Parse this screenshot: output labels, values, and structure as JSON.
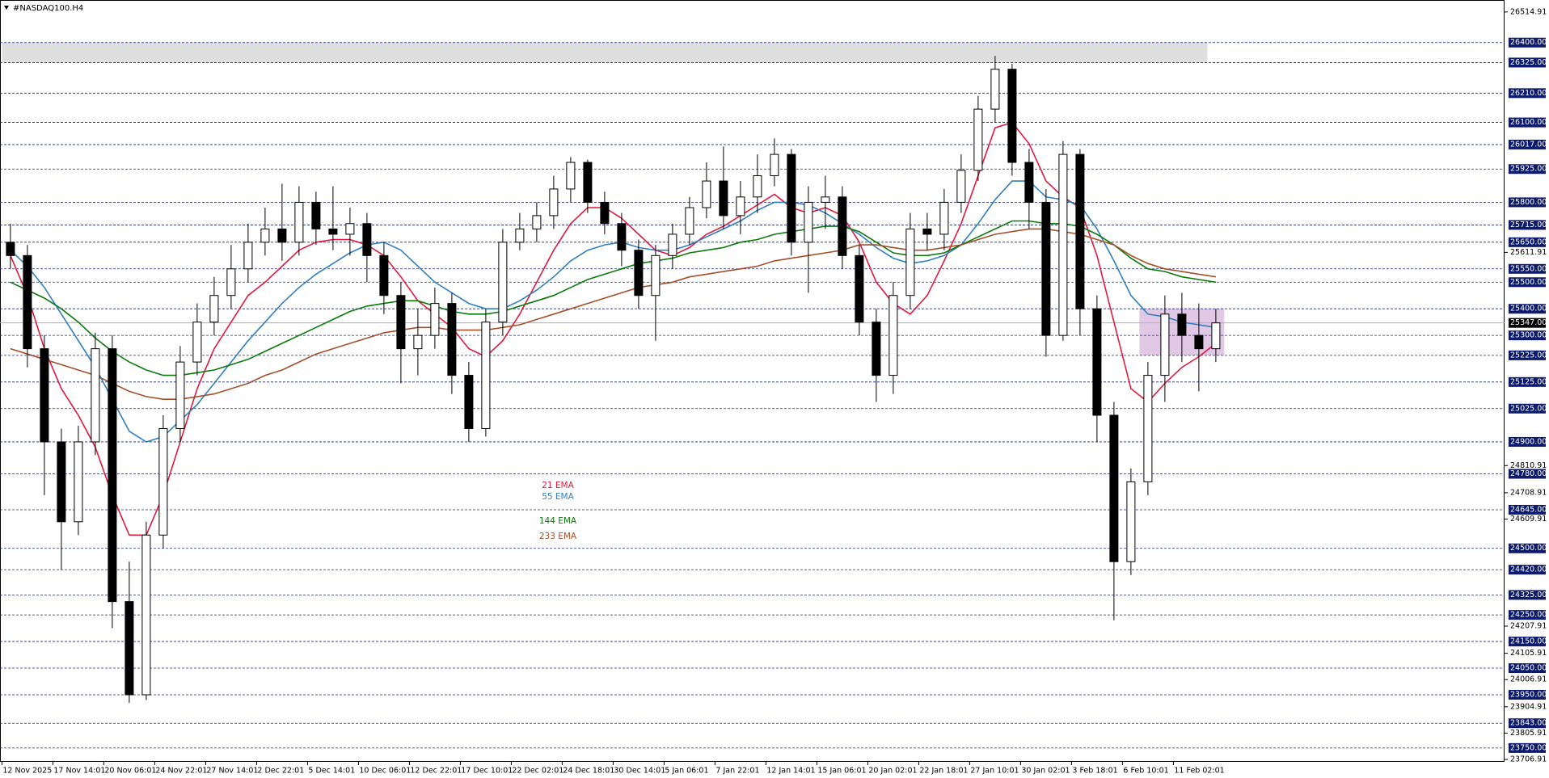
{
  "chart_data": {
    "type": "candlestick",
    "title": "#NASDAQ100.H4",
    "categories": [
      "12 Nov 2025",
      null,
      null,
      "17 Nov 14:01",
      null,
      null,
      "20 Nov 06:01",
      null,
      null,
      "24 Nov 22:01",
      null,
      null,
      "27 Nov 14:01",
      null,
      null,
      "2 Dec 22:01",
      null,
      null,
      "5 Dec 14:01",
      null,
      null,
      "10 Dec 06:01",
      null,
      null,
      "12 Dec 22:01",
      null,
      null,
      "17 Dec 10:01",
      null,
      null,
      "22 Dec 02:01",
      null,
      null,
      "24 Dec 18:01",
      null,
      null,
      "30 Dec 14:01",
      null,
      null,
      "5 Jan 06:01",
      null,
      null,
      "7 Jan 22:01",
      null,
      null,
      "12 Jan 14:01",
      null,
      null,
      "15 Jan 06:01",
      null,
      null,
      "20 Jan 02:01",
      null,
      null,
      "22 Jan 18:01",
      null,
      null,
      "27 Jan 10:01",
      null,
      null,
      "30 Jan 02:01",
      null,
      null,
      "3 Feb 18:01",
      null,
      null,
      "6 Feb 10:01",
      null,
      null,
      "11 Feb 02:01",
      null,
      null
    ],
    "ohlc": [
      [
        25650,
        25720,
        25550,
        25600
      ],
      [
        25600,
        25640,
        25180,
        25250
      ],
      [
        25250,
        25300,
        24700,
        24900
      ],
      [
        24900,
        24950,
        24420,
        24600
      ],
      [
        24600,
        24960,
        24550,
        24900
      ],
      [
        24900,
        25310,
        24850,
        25250
      ],
      [
        25250,
        25300,
        24200,
        24300
      ],
      [
        24300,
        24450,
        23920,
        23950
      ],
      [
        23950,
        24600,
        23930,
        24550
      ],
      [
        24550,
        25000,
        24500,
        24950
      ],
      [
        24950,
        25260,
        24900,
        25200
      ],
      [
        25200,
        25420,
        25150,
        25350
      ],
      [
        25350,
        25520,
        25300,
        25450
      ],
      [
        25450,
        25640,
        25400,
        25550
      ],
      [
        25550,
        25720,
        25500,
        25650
      ],
      [
        25650,
        25780,
        25600,
        25700
      ],
      [
        25700,
        25870,
        25580,
        25650
      ],
      [
        25650,
        25860,
        25600,
        25800
      ],
      [
        25800,
        25840,
        25640,
        25700
      ],
      [
        25700,
        25860,
        25620,
        25680
      ],
      [
        25680,
        25780,
        25600,
        25720
      ],
      [
        25720,
        25760,
        25500,
        25600
      ],
      [
        25600,
        25650,
        25380,
        25450
      ],
      [
        25450,
        25500,
        25120,
        25250
      ],
      [
        25250,
        25400,
        25150,
        25300
      ],
      [
        25300,
        25480,
        25250,
        25420
      ],
      [
        25420,
        25460,
        25080,
        25150
      ],
      [
        25150,
        25200,
        24900,
        24950
      ],
      [
        24950,
        25400,
        24920,
        25350
      ],
      [
        25350,
        25700,
        25300,
        25650
      ],
      [
        25650,
        25760,
        25620,
        25700
      ],
      [
        25700,
        25800,
        25650,
        25750
      ],
      [
        25750,
        25900,
        25700,
        25850
      ],
      [
        25850,
        25970,
        25800,
        25950
      ],
      [
        25950,
        25960,
        25760,
        25800
      ],
      [
        25800,
        25840,
        25680,
        25720
      ],
      [
        25720,
        25760,
        25560,
        25620
      ],
      [
        25620,
        25660,
        25400,
        25450
      ],
      [
        25450,
        25640,
        25280,
        25600
      ],
      [
        25600,
        25720,
        25550,
        25680
      ],
      [
        25680,
        25820,
        25640,
        25780
      ],
      [
        25780,
        25950,
        25740,
        25880
      ],
      [
        25880,
        26010,
        25700,
        25750
      ],
      [
        25750,
        25880,
        25680,
        25820
      ],
      [
        25820,
        25980,
        25760,
        25900
      ],
      [
        25900,
        26040,
        25860,
        25980
      ],
      [
        25980,
        26000,
        25600,
        25650
      ],
      [
        25650,
        25860,
        25460,
        25800
      ],
      [
        25800,
        25900,
        25700,
        25820
      ],
      [
        25820,
        25860,
        25550,
        25600
      ],
      [
        25600,
        25640,
        25300,
        25350
      ],
      [
        25350,
        25400,
        25050,
        25150
      ],
      [
        25150,
        25500,
        25080,
        25450
      ],
      [
        25450,
        25760,
        25400,
        25700
      ],
      [
        25700,
        25760,
        25620,
        25680
      ],
      [
        25680,
        25850,
        25620,
        25800
      ],
      [
        25800,
        25980,
        25760,
        25920
      ],
      [
        25920,
        26200,
        25880,
        26150
      ],
      [
        26150,
        26350,
        26100,
        26300
      ],
      [
        26300,
        26320,
        25900,
        25950
      ],
      [
        25950,
        26000,
        25700,
        25800
      ],
      [
        25800,
        25850,
        25220,
        25300
      ],
      [
        25300,
        26030,
        25280,
        25980
      ],
      [
        25980,
        26000,
        25300,
        25400
      ],
      [
        25400,
        25450,
        24900,
        25000
      ],
      [
        25000,
        25050,
        24230,
        24450
      ],
      [
        24450,
        24800,
        24400,
        24750
      ],
      [
        24750,
        25200,
        24700,
        25150
      ],
      [
        25150,
        25450,
        25050,
        25380
      ],
      [
        25380,
        25460,
        25200,
        25300
      ],
      [
        25300,
        25420,
        25090,
        25250
      ],
      [
        25250,
        25400,
        25200,
        25347
      ]
    ],
    "up_color": "#ffffff",
    "down_color": "#000000",
    "series": [
      {
        "name": "21 EMA",
        "color": "#e0193f",
        "values": [
          25600,
          25450,
          25250,
          25100,
          25000,
          24880,
          24700,
          24550,
          24550,
          24700,
          24900,
          25100,
          25250,
          25350,
          25450,
          25500,
          25560,
          25620,
          25650,
          25660,
          25660,
          25640,
          25600,
          25520,
          25430,
          25380,
          25330,
          25250,
          25220,
          25280,
          25380,
          25500,
          25620,
          25720,
          25780,
          25780,
          25740,
          25680,
          25620,
          25600,
          25630,
          25680,
          25710,
          25750,
          25790,
          25830,
          25780,
          25760,
          25780,
          25750,
          25650,
          25500,
          25420,
          25380,
          25450,
          25580,
          25720,
          25900,
          26080,
          26100,
          26020,
          25880,
          25820,
          25780,
          25600,
          25350,
          25100,
          25050,
          25120,
          25180,
          25220,
          25270
        ]
      },
      {
        "name": "55 EMA",
        "color": "#2f7fc1",
        "values": [
          25620,
          25560,
          25480,
          25380,
          25280,
          25180,
          25060,
          24940,
          24900,
          24920,
          24980,
          25040,
          25120,
          25200,
          25280,
          25350,
          25420,
          25480,
          25530,
          25570,
          25610,
          25640,
          25650,
          25620,
          25560,
          25500,
          25460,
          25420,
          25400,
          25400,
          25430,
          25470,
          25520,
          25580,
          25620,
          25640,
          25650,
          25630,
          25620,
          25620,
          25640,
          25670,
          25700,
          25730,
          25770,
          25800,
          25800,
          25790,
          25760,
          25720,
          25680,
          25630,
          25590,
          25570,
          25580,
          25600,
          25640,
          25720,
          25810,
          25880,
          25880,
          25820,
          25810,
          25790,
          25700,
          25580,
          25450,
          25380,
          25370,
          25350,
          25340,
          25330
        ]
      },
      {
        "name": "144 EMA",
        "color": "#0b7a0b",
        "values": [
          25500,
          25470,
          25440,
          25400,
          25350,
          25290,
          25240,
          25200,
          25170,
          25150,
          25150,
          25160,
          25170,
          25190,
          25210,
          25240,
          25270,
          25300,
          25330,
          25360,
          25390,
          25410,
          25420,
          25430,
          25430,
          25410,
          25390,
          25380,
          25380,
          25390,
          25410,
          25430,
          25450,
          25480,
          25510,
          25530,
          25550,
          25570,
          25580,
          25590,
          25610,
          25620,
          25630,
          25650,
          25660,
          25680,
          25690,
          25700,
          25710,
          25710,
          25690,
          25650,
          25610,
          25600,
          25600,
          25610,
          25640,
          25670,
          25700,
          25730,
          25730,
          25720,
          25720,
          25710,
          25680,
          25640,
          25590,
          25550,
          25540,
          25520,
          25510,
          25500
        ]
      },
      {
        "name": "233 EMA",
        "color": "#a4502a",
        "values": [
          25250,
          25230,
          25210,
          25190,
          25170,
          25150,
          25120,
          25090,
          25070,
          25060,
          25060,
          25070,
          25080,
          25100,
          25120,
          25150,
          25170,
          25200,
          25230,
          25250,
          25270,
          25290,
          25310,
          25320,
          25330,
          25330,
          25320,
          25320,
          25320,
          25330,
          25340,
          25360,
          25380,
          25400,
          25420,
          25440,
          25460,
          25480,
          25490,
          25500,
          25520,
          25530,
          25540,
          25550,
          25560,
          25580,
          25590,
          25600,
          25610,
          25620,
          25640,
          25640,
          25630,
          25620,
          25620,
          25630,
          25640,
          25660,
          25680,
          25690,
          25700,
          25700,
          25690,
          25680,
          25660,
          25640,
          25600,
          25570,
          25550,
          25540,
          25530,
          25520
        ]
      }
    ],
    "ylim": [
      23698,
      26560
    ],
    "yticks": [
      26514.91,
      25611.91,
      24810.91,
      24708.91,
      24609.91,
      24207.91,
      24105.91,
      24006.91,
      23904.91,
      23805.91,
      23706.91
    ],
    "levels": [
      {
        "value": 26400,
        "label": "26400.00"
      },
      {
        "value": 26325,
        "label": "26325.00"
      },
      {
        "value": 26210,
        "label": "26210.00"
      },
      {
        "value": 26100,
        "label": "26100.00"
      },
      {
        "value": 26017,
        "label": "26017.00"
      },
      {
        "value": 25925,
        "label": "25925.00"
      },
      {
        "value": 25800,
        "label": "25800.00"
      },
      {
        "value": 25715,
        "label": "25715.00"
      },
      {
        "value": 25650,
        "label": "25650.00"
      },
      {
        "value": 25550,
        "label": "25550.00"
      },
      {
        "value": 25500,
        "label": "25500.00"
      },
      {
        "value": 25400,
        "label": "25400.00"
      },
      {
        "value": 25300,
        "label": "25300.00"
      },
      {
        "value": 25225,
        "label": "25225.00"
      },
      {
        "value": 25125,
        "label": "25125.00"
      },
      {
        "value": 25025,
        "label": "25025.00"
      },
      {
        "value": 24900,
        "label": "24900.00"
      },
      {
        "value": 24780,
        "label": "24780.00"
      },
      {
        "value": 24645,
        "label": "24645.00"
      },
      {
        "value": 24500,
        "label": "24500.00"
      },
      {
        "value": 24420,
        "label": "24420.00"
      },
      {
        "value": 24325,
        "label": "24325.00"
      },
      {
        "value": 24250,
        "label": "24250.00"
      },
      {
        "value": 24150,
        "label": "24150.00"
      },
      {
        "value": 24050,
        "label": "24050.00"
      },
      {
        "value": 23950,
        "label": "23950.00"
      },
      {
        "value": 23843,
        "label": "23843.00"
      },
      {
        "value": 23750,
        "label": "23750.00"
      }
    ],
    "price_line": {
      "value": 25347,
      "label": "25347.00"
    },
    "zones": [
      {
        "x": [
          0,
          70
        ],
        "range": [
          26325,
          26400
        ],
        "color": "#d9d9d9"
      },
      {
        "x": [
          67,
          71
        ],
        "range": [
          25225,
          25400
        ],
        "color": "#dcc0e0"
      }
    ]
  }
}
